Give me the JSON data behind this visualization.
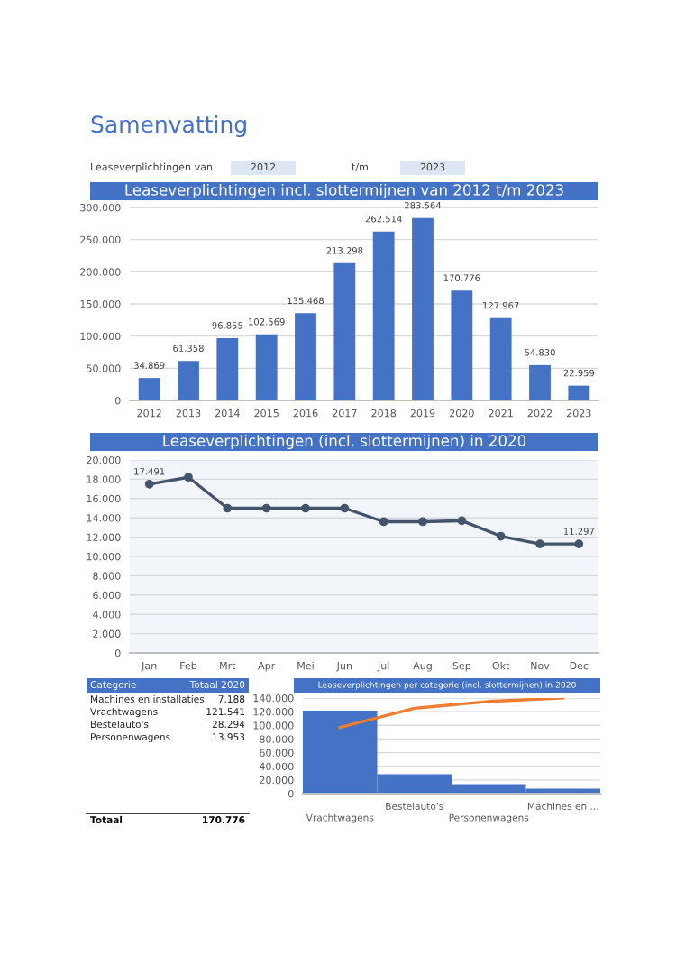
{
  "chart_data": [
    {
      "type": "other",
      "title": "Samenvatting",
      "annotations": [
        "Leaseverplichtingen van",
        "2012",
        "t/m",
        "2023"
      ]
    },
    {
      "type": "bar",
      "title": "Leaseverplichtingen incl. slottermijnen van 2012 t/m 2023",
      "categories": [
        "2012",
        "2013",
        "2014",
        "2015",
        "2016",
        "2017",
        "2018",
        "2019",
        "2020",
        "2021",
        "2022",
        "2023"
      ],
      "values": [
        34869,
        61358,
        96855,
        102569,
        135468,
        213298,
        262514,
        283564,
        170776,
        127967,
        54830,
        22959
      ],
      "value_labels": [
        "34.869",
        "61.358",
        "96.855",
        "102.569",
        "135.468",
        "213.298",
        "262.514",
        "283.564",
        "170.776",
        "127.967",
        "54.830",
        "22.959"
      ],
      "color": "#4472c4",
      "ylim": [
        0,
        300000
      ],
      "yticks": [
        {
          "value": 0,
          "label": "0"
        },
        {
          "value": 50000,
          "label": "50.000"
        },
        {
          "value": 100000,
          "label": "100.000"
        },
        {
          "value": 150000,
          "label": "150.000"
        },
        {
          "value": 200000,
          "label": "200.000"
        },
        {
          "value": 250000,
          "label": "250.000"
        },
        {
          "value": 300000,
          "label": "300.000"
        }
      ],
      "grid": "y"
    },
    {
      "type": "line",
      "title": "Leaseverplichtingen (incl. slottermijnen) in 2020",
      "categories": [
        "Jan",
        "Feb",
        "Mrt",
        "Apr",
        "Mei",
        "Jun",
        "Jul",
        "Aug",
        "Sep",
        "Okt",
        "Nov",
        "Dec"
      ],
      "values": [
        17491,
        18200,
        15000,
        15000,
        15000,
        15000,
        13600,
        13600,
        13700,
        12100,
        11300,
        11297
      ],
      "value_labels": [
        "17.491",
        null,
        null,
        null,
        null,
        null,
        null,
        null,
        null,
        null,
        null,
        "11.297"
      ],
      "color": "#44546a",
      "marker": "circle",
      "ylim": [
        0,
        20000
      ],
      "yticks": [
        {
          "value": 0,
          "label": "0"
        },
        {
          "value": 2000,
          "label": "2.000"
        },
        {
          "value": 4000,
          "label": "4.000"
        },
        {
          "value": 6000,
          "label": "6.000"
        },
        {
          "value": 8000,
          "label": "8.000"
        },
        {
          "value": 10000,
          "label": "10.000"
        },
        {
          "value": 12000,
          "label": "12.000"
        },
        {
          "value": 14000,
          "label": "14.000"
        },
        {
          "value": 16000,
          "label": "16.000"
        },
        {
          "value": 18000,
          "label": "18.000"
        },
        {
          "value": 20000,
          "label": "20.000"
        }
      ],
      "grid": "y"
    },
    {
      "type": "other",
      "categories": [
        "Machines en installaties",
        "Vrachtwagens",
        "Bestelauto's",
        "Personenwagens"
      ],
      "value_labels": [
        "7.188",
        "121.541",
        "28.294",
        "13.953"
      ],
      "annotations": [
        "Categorie",
        "Totaal 2020",
        "Totaal",
        "170.776"
      ]
    },
    {
      "type": "bar",
      "title": "Leaseverplichtingen per categorie (incl. slottermijnen) in 2020",
      "categories": [
        "Vrachtwagens",
        "Bestelauto's",
        "Personenwagens",
        "Machines en ..."
      ],
      "series": [
        {
          "type": "bar",
          "color": "#4472c4",
          "values": [
            121500,
            28300,
            14000,
            7200
          ]
        },
        {
          "type": "line",
          "color": "#ed7d31",
          "values": [
            97000,
            125000,
            135000,
            140000
          ]
        }
      ],
      "ylim": [
        0,
        140000
      ],
      "yticks": [
        {
          "value": 0,
          "label": "0"
        },
        {
          "value": 20000,
          "label": "20.000"
        },
        {
          "value": 40000,
          "label": "40.000"
        },
        {
          "value": 60000,
          "label": "60.000"
        },
        {
          "value": 80000,
          "label": "80.000"
        },
        {
          "value": 100000,
          "label": "100.000"
        },
        {
          "value": 120000,
          "label": "120.000"
        },
        {
          "value": 140000,
          "label": "140.000"
        }
      ],
      "grid": "y"
    }
  ]
}
